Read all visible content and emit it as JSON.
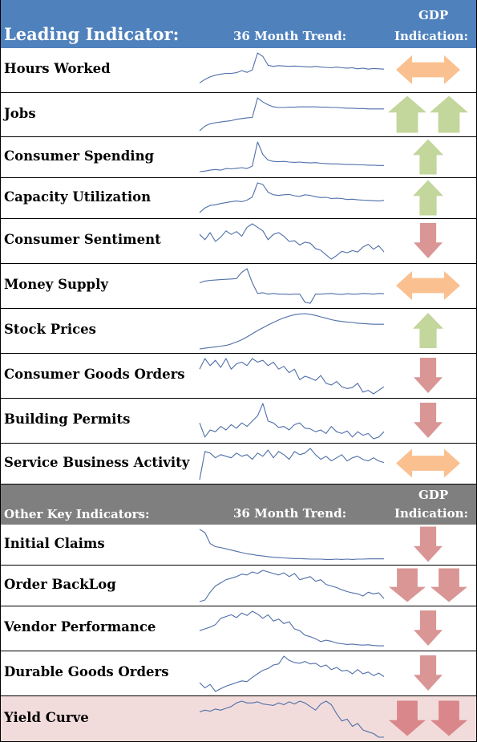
{
  "leading_header": {
    "title": "Leading Indicator:",
    "trend_label": "36 Month Trend:",
    "gdp_label_line1": "GDP",
    "gdp_label_line2": "Indication:"
  },
  "other_header": {
    "title": "Other Key Indicators:",
    "trend_label": "36 Month Trend:",
    "gdp_label_line1": "GDP",
    "gdp_label_line2": "Indication:"
  },
  "colors": {
    "header_blue": "#4f81bd",
    "header_gray": "#7f7f7f",
    "sparkline": "#4f6fa8",
    "arrow_neutral": "#fac090",
    "arrow_up": "#c3d69b",
    "arrow_down": "#d99694",
    "arrow_down_strong": "#d9878a",
    "highlight_row": "#f2dcdb"
  },
  "leading_indicators": [
    {
      "label": "Hours Worked",
      "indication": "neutral",
      "trend": [
        0.85,
        0.75,
        0.68,
        0.63,
        0.6,
        0.58,
        0.58,
        0.56,
        0.5,
        0.55,
        0.48,
        0.0,
        0.1,
        0.35,
        0.38,
        0.36,
        0.37,
        0.38,
        0.37,
        0.38,
        0.39,
        0.4,
        0.38,
        0.4,
        0.41,
        0.42,
        0.4,
        0.42,
        0.43,
        0.42,
        0.45,
        0.43,
        0.46,
        0.44,
        0.45,
        0.46
      ]
    },
    {
      "label": "Jobs",
      "indication": "double-up",
      "trend": [
        0.95,
        0.82,
        0.75,
        0.72,
        0.7,
        0.68,
        0.66,
        0.62,
        0.6,
        0.58,
        0.57,
        0.0,
        0.12,
        0.2,
        0.26,
        0.28,
        0.28,
        0.27,
        0.27,
        0.26,
        0.26,
        0.26,
        0.26,
        0.27,
        0.27,
        0.28,
        0.28,
        0.29,
        0.3,
        0.3,
        0.31,
        0.31,
        0.32,
        0.32,
        0.32,
        0.32
      ]
    },
    {
      "label": "Consumer Spending",
      "indication": "up",
      "trend": [
        0.95,
        0.93,
        0.9,
        0.88,
        0.9,
        0.85,
        0.86,
        0.84,
        0.82,
        0.85,
        0.77,
        0.0,
        0.4,
        0.58,
        0.62,
        0.63,
        0.62,
        0.64,
        0.65,
        0.64,
        0.66,
        0.67,
        0.66,
        0.68,
        0.69,
        0.7,
        0.7,
        0.71,
        0.72,
        0.72,
        0.73,
        0.73,
        0.74,
        0.74,
        0.75,
        0.75
      ]
    },
    {
      "label": "Capacity Utilization",
      "indication": "up",
      "trend": [
        0.95,
        0.8,
        0.72,
        0.7,
        0.66,
        0.63,
        0.6,
        0.58,
        0.6,
        0.55,
        0.45,
        0.0,
        0.05,
        0.3,
        0.38,
        0.4,
        0.38,
        0.37,
        0.41,
        0.43,
        0.38,
        0.4,
        0.44,
        0.47,
        0.46,
        0.5,
        0.49,
        0.5,
        0.53,
        0.52,
        0.54,
        0.55,
        0.56,
        0.57,
        0.58,
        0.56
      ]
    },
    {
      "label": "Consumer Sentiment",
      "indication": "down",
      "trend": [
        0.3,
        0.45,
        0.25,
        0.5,
        0.38,
        0.2,
        0.3,
        0.22,
        0.35,
        0.1,
        0.0,
        0.1,
        0.2,
        0.45,
        0.3,
        0.25,
        0.35,
        0.5,
        0.48,
        0.6,
        0.52,
        0.55,
        0.7,
        0.75,
        0.88,
        1.0,
        0.9,
        0.78,
        0.82,
        0.76,
        0.8,
        0.66,
        0.58,
        0.72,
        0.62,
        0.8
      ]
    },
    {
      "label": "Money Supply",
      "indication": "neutral",
      "trend": [
        0.4,
        0.35,
        0.33,
        0.32,
        0.31,
        0.3,
        0.29,
        0.28,
        0.1,
        0.0,
        0.4,
        0.7,
        0.68,
        0.72,
        0.7,
        0.72,
        0.72,
        0.73,
        0.72,
        0.72,
        0.95,
        0.98,
        0.72,
        0.72,
        0.71,
        0.7,
        0.72,
        0.73,
        0.71,
        0.72,
        0.72,
        0.7,
        0.71,
        0.72,
        0.7,
        0.71
      ]
    },
    {
      "label": "Stock Prices",
      "indication": "up",
      "trend": [
        1.0,
        0.98,
        0.96,
        0.94,
        0.92,
        0.9,
        0.86,
        0.8,
        0.74,
        0.66,
        0.57,
        0.48,
        0.4,
        0.32,
        0.25,
        0.18,
        0.12,
        0.07,
        0.03,
        0.01,
        0.0,
        0.02,
        0.05,
        0.09,
        0.13,
        0.17,
        0.2,
        0.22,
        0.24,
        0.25,
        0.27,
        0.28,
        0.29,
        0.3,
        0.3,
        0.3
      ]
    },
    {
      "label": "Consumer Goods Orders",
      "indication": "down",
      "trend": [
        0.3,
        0.0,
        0.2,
        0.05,
        0.25,
        0.0,
        0.3,
        0.15,
        0.1,
        0.2,
        0.0,
        0.1,
        0.05,
        0.2,
        0.1,
        0.3,
        0.22,
        0.4,
        0.3,
        0.6,
        0.5,
        0.55,
        0.62,
        0.48,
        0.7,
        0.75,
        0.65,
        0.8,
        0.85,
        0.82,
        0.7,
        0.95,
        0.9,
        1.0,
        0.9,
        0.8
      ]
    },
    {
      "label": "Building Permits",
      "indication": "down",
      "trend": [
        0.55,
        0.95,
        0.75,
        0.8,
        0.65,
        0.75,
        0.6,
        0.7,
        0.55,
        0.65,
        0.5,
        0.35,
        0.0,
        0.5,
        0.55,
        0.68,
        0.65,
        0.75,
        0.6,
        0.55,
        0.7,
        0.72,
        0.8,
        0.75,
        0.85,
        0.65,
        0.8,
        0.85,
        0.78,
        0.95,
        0.8,
        0.9,
        0.85,
        1.0,
        0.95,
        0.8
      ]
    },
    {
      "label": "Service Business Activity",
      "indication": "neutral",
      "trend": [
        1.0,
        0.1,
        0.15,
        0.3,
        0.2,
        0.25,
        0.3,
        0.15,
        0.25,
        0.2,
        0.35,
        0.15,
        0.25,
        0.05,
        0.3,
        0.1,
        0.2,
        0.35,
        0.1,
        0.2,
        0.15,
        0.0,
        0.2,
        0.35,
        0.25,
        0.4,
        0.3,
        0.2,
        0.4,
        0.3,
        0.25,
        0.35,
        0.4,
        0.3,
        0.4,
        0.45
      ]
    }
  ],
  "other_indicators": [
    {
      "label": "Initial Claims",
      "indication": "down",
      "highlight": false,
      "trend": [
        0.0,
        0.1,
        0.45,
        0.55,
        0.58,
        0.62,
        0.66,
        0.7,
        0.74,
        0.78,
        0.8,
        0.83,
        0.85,
        0.87,
        0.89,
        0.9,
        0.91,
        0.92,
        0.93,
        0.93,
        0.94,
        0.95,
        0.95,
        0.95,
        0.96,
        0.96,
        0.95,
        0.96,
        0.95,
        0.96,
        0.95,
        0.95,
        0.94,
        0.94,
        0.94,
        0.94
      ]
    },
    {
      "label": "Order BackLog",
      "indication": "double-down",
      "highlight": false,
      "trend": [
        1.0,
        0.95,
        0.7,
        0.5,
        0.4,
        0.3,
        0.25,
        0.2,
        0.12,
        0.15,
        0.05,
        0.1,
        0.0,
        0.05,
        0.1,
        0.15,
        0.08,
        0.2,
        0.1,
        0.3,
        0.25,
        0.2,
        0.35,
        0.3,
        0.45,
        0.5,
        0.55,
        0.62,
        0.68,
        0.72,
        0.75,
        0.82,
        0.7,
        0.75,
        0.72,
        0.9
      ]
    },
    {
      "label": "Vendor Performance",
      "indication": "down",
      "highlight": false,
      "trend": [
        0.55,
        0.5,
        0.45,
        0.38,
        0.2,
        0.15,
        0.1,
        0.18,
        0.05,
        0.12,
        0.0,
        0.08,
        0.2,
        0.1,
        0.28,
        0.22,
        0.35,
        0.3,
        0.5,
        0.55,
        0.68,
        0.72,
        0.78,
        0.86,
        0.82,
        0.85,
        0.9,
        0.92,
        0.94,
        0.93,
        0.95,
        0.96,
        0.95,
        0.97,
        0.98,
        0.98
      ]
    },
    {
      "label": "Durable Goods Orders",
      "indication": "down",
      "highlight": false,
      "trend": [
        0.75,
        0.9,
        0.8,
        1.0,
        0.92,
        0.85,
        0.8,
        0.75,
        0.7,
        0.72,
        0.6,
        0.5,
        0.4,
        0.35,
        0.25,
        0.22,
        0.0,
        0.12,
        0.18,
        0.2,
        0.15,
        0.22,
        0.2,
        0.3,
        0.25,
        0.38,
        0.32,
        0.42,
        0.4,
        0.5,
        0.38,
        0.5,
        0.45,
        0.55,
        0.48,
        0.58
      ]
    },
    {
      "label": "Yield Curve",
      "indication": "double-down-strong",
      "highlight": true,
      "trend": [
        0.3,
        0.25,
        0.28,
        0.22,
        0.25,
        0.2,
        0.15,
        0.05,
        0.0,
        0.05,
        0.05,
        0.02,
        0.08,
        0.1,
        0.12,
        0.05,
        0.1,
        0.02,
        0.08,
        0.0,
        0.05,
        0.15,
        0.25,
        0.08,
        0.0,
        0.1,
        0.35,
        0.55,
        0.5,
        0.7,
        0.62,
        0.8,
        0.85,
        0.9,
        1.0,
        1.0
      ]
    }
  ]
}
